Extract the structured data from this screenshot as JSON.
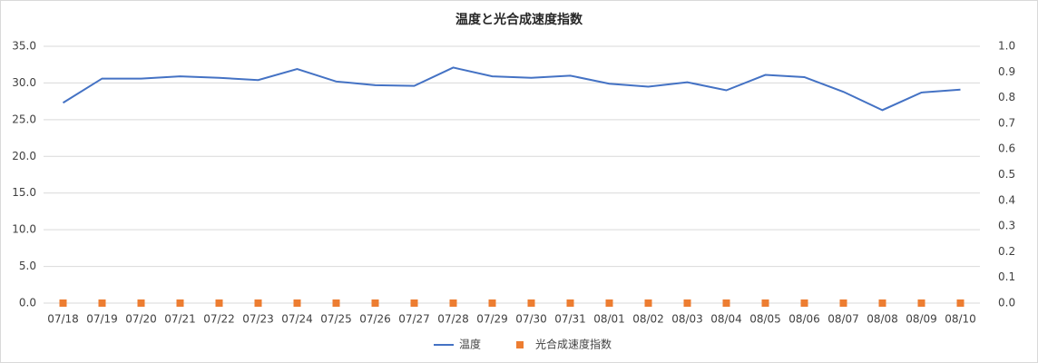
{
  "chart_data": {
    "type": "line",
    "title": "温度と光合成速度指数",
    "categories": [
      "07/18",
      "07/19",
      "07/20",
      "07/21",
      "07/22",
      "07/23",
      "07/24",
      "07/25",
      "07/26",
      "07/27",
      "07/28",
      "07/29",
      "07/30",
      "07/31",
      "08/01",
      "08/02",
      "08/03",
      "08/04",
      "08/05",
      "08/06",
      "08/07",
      "08/08",
      "08/09",
      "08/10"
    ],
    "series": [
      {
        "name": "温度",
        "color": "#4472c4",
        "values": [
          27.3,
          30.6,
          30.6,
          30.9,
          30.7,
          30.4,
          31.9,
          30.2,
          29.7,
          29.6,
          32.1,
          30.9,
          30.7,
          31.0,
          29.9,
          29.5,
          30.1,
          29.0,
          31.1,
          30.8,
          28.8,
          26.3,
          28.7,
          29.1
        ]
      },
      {
        "name": "光合成速度指数",
        "color": "#ed7d31",
        "axis": "y2",
        "marker": "square",
        "values": [
          0,
          0,
          0,
          0,
          0,
          0,
          0,
          0,
          0,
          0,
          0,
          0,
          0,
          0,
          0,
          0,
          0,
          0,
          0,
          0,
          0,
          0,
          0,
          0
        ]
      }
    ],
    "ylim": [
      0,
      35
    ],
    "yticks": [
      {
        "value": 0,
        "label": "0.0"
      },
      {
        "value": 5,
        "label": "5.0"
      },
      {
        "value": 10,
        "label": "10.0"
      },
      {
        "value": 15,
        "label": "15.0"
      },
      {
        "value": 20,
        "label": "20.0"
      },
      {
        "value": 25,
        "label": "25.0"
      },
      {
        "value": 30,
        "label": "30.0"
      },
      {
        "value": 35,
        "label": "35.0"
      }
    ],
    "y2lim": [
      0,
      1
    ],
    "y2ticks": [
      {
        "value": 0,
        "label": "0.0"
      },
      0.1,
      0.2,
      0.3,
      0.4,
      0.5,
      0.6,
      0.7,
      0.8,
      0.9,
      {
        "value": 1,
        "label": "1.0"
      }
    ],
    "grid": true,
    "legend": "bottom"
  }
}
